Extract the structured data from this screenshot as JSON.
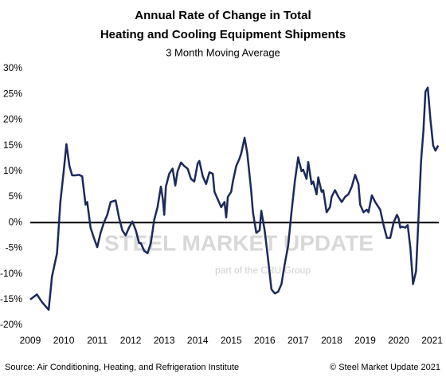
{
  "chart_data": {
    "type": "line",
    "title": "Annual Rate of Change in Total",
    "title_line2": "Heating and Cooling Equipment Shipments",
    "subtitle": "3 Month Moving Average",
    "source": "Source: Air Conditioning, Heating, and Refrigeration Institute",
    "copyright": "© Steel Market Update 2021",
    "watermark": "STEEL MARKET UPDATE",
    "watermark_sub": "part of the CRU Group",
    "x": [
      2009.0,
      2009.2,
      2009.35,
      2009.55,
      2009.65,
      2009.8,
      2009.9,
      2010.0,
      2010.08,
      2010.17,
      2010.25,
      2010.35,
      2010.45,
      2010.55,
      2010.65,
      2010.7,
      2010.8,
      2010.9,
      2011.0,
      2011.1,
      2011.2,
      2011.3,
      2011.4,
      2011.55,
      2011.65,
      2011.75,
      2011.85,
      2011.95,
      2012.05,
      2012.15,
      2012.25,
      2012.3,
      2012.4,
      2012.5,
      2012.6,
      2012.7,
      2012.8,
      2012.9,
      2012.96,
      2013.0,
      2013.05,
      2013.15,
      2013.25,
      2013.33,
      2013.4,
      2013.5,
      2013.6,
      2013.7,
      2013.8,
      2013.9,
      2014.0,
      2014.05,
      2014.15,
      2014.25,
      2014.35,
      2014.45,
      2014.5,
      2014.6,
      2014.7,
      2014.8,
      2014.85,
      2014.9,
      2015.0,
      2015.05,
      2015.15,
      2015.25,
      2015.3,
      2015.4,
      2015.48,
      2015.6,
      2015.65,
      2015.75,
      2015.85,
      2015.9,
      2016.0,
      2016.1,
      2016.2,
      2016.3,
      2016.4,
      2016.5,
      2016.6,
      2016.7,
      2016.8,
      2016.9,
      2017.0,
      2017.1,
      2017.15,
      2017.25,
      2017.3,
      2017.4,
      2017.45,
      2017.55,
      2017.6,
      2017.7,
      2017.75,
      2017.85,
      2017.95,
      2018.0,
      2018.1,
      2018.2,
      2018.3,
      2018.4,
      2018.5,
      2018.6,
      2018.7,
      2018.8,
      2018.85,
      2018.95,
      2019.05,
      2019.1,
      2019.2,
      2019.3,
      2019.4,
      2019.45,
      2019.55,
      2019.65,
      2019.75,
      2019.85,
      2019.95,
      2020.0,
      2020.05,
      2020.1,
      2020.2,
      2020.27,
      2020.35,
      2020.43,
      2020.52,
      2020.6,
      2020.67,
      2020.74,
      2020.8,
      2020.87,
      2020.95,
      2021.03,
      2021.1,
      2021.18
    ],
    "series": [
      {
        "name": "Shipments",
        "color": "#1b2a5c",
        "values": [
          -15,
          -14,
          -15.5,
          -17,
          -10.5,
          -6,
          4,
          10,
          15.3,
          11,
          9.2,
          9.2,
          9.3,
          9,
          3.5,
          4,
          -1,
          -3,
          -4.8,
          -2,
          0,
          1.5,
          4,
          4.3,
          1,
          -1.5,
          -2.5,
          -1,
          0.2,
          -1.5,
          -4,
          -4,
          -5.5,
          -6,
          -4,
          0.5,
          3,
          7,
          4.5,
          1.5,
          7,
          9.5,
          10.5,
          7.2,
          10,
          11.7,
          11,
          10.5,
          8.5,
          8,
          11.5,
          12,
          9,
          7.5,
          9.8,
          9.5,
          6,
          4.5,
          3,
          4,
          1,
          5,
          6,
          8,
          11,
          12.5,
          13.5,
          16.5,
          13.5,
          6,
          2,
          -2,
          -1.5,
          2.3,
          -1.5,
          -7,
          -13,
          -13.8,
          -13.5,
          -12,
          -8,
          -4.5,
          2,
          8,
          12.7,
          10,
          10.3,
          8.5,
          11.8,
          7.5,
          8,
          5.5,
          8.8,
          6,
          6.3,
          2,
          3,
          5,
          6.3,
          5,
          4,
          5,
          5.5,
          7,
          9.3,
          7.5,
          3.5,
          2,
          2.5,
          2,
          5.3,
          4,
          3,
          2.5,
          -0.5,
          -3,
          -3,
          0,
          1.5,
          0.8,
          -1,
          -0.8,
          -1,
          -0.5,
          -5,
          -12,
          -9.5,
          2,
          12,
          18,
          25.5,
          26.3,
          20,
          15,
          14,
          15
        ]
      }
    ],
    "xlim": [
      2009,
      2021.2
    ],
    "xticks": [
      2009,
      2010,
      2011,
      2012,
      2013,
      2014,
      2015,
      2016,
      2017,
      2018,
      2019,
      2020,
      2021
    ],
    "ylim": [
      -20,
      30
    ],
    "yticks": [
      {
        "value": 30,
        "label": "30%"
      },
      {
        "value": 25,
        "label": "25%"
      },
      {
        "value": 20,
        "label": "20%"
      },
      {
        "value": 15,
        "label": "15%"
      },
      {
        "value": 10,
        "label": "10%"
      },
      {
        "value": 5,
        "label": "5%"
      },
      {
        "value": 0,
        "label": "0%"
      },
      {
        "value": -5,
        "label": "-5%"
      },
      {
        "value": -10,
        "label": "-10%"
      },
      {
        "value": -15,
        "label": "-15%"
      },
      {
        "value": -20,
        "label": "-20%"
      }
    ],
    "grid": false
  }
}
